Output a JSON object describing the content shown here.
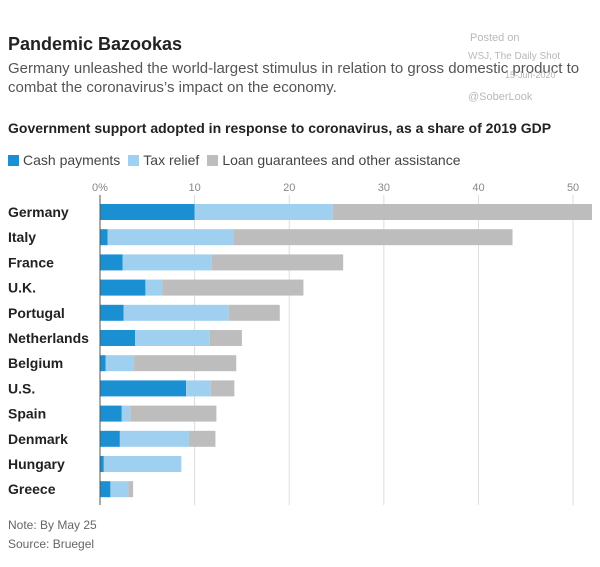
{
  "header": {
    "title": "Pandemic Bazookas",
    "subtitle": "Germany unleashed the world-largest stimulus in relation to gross domestic product to combat the coronavirus’s impact on the economy."
  },
  "watermark": {
    "posted": "Posted on",
    "source": "WSJ, The Daily Shot",
    "date": "15-Jun-2020",
    "handle": "@SoberLook"
  },
  "footer": {
    "note": "Note: By May 25",
    "source": "Source: Bruegel"
  },
  "colors": {
    "cash": "#1a8fd1",
    "tax": "#9fd0ef",
    "loan": "#bdbdbd"
  },
  "chart_data": {
    "type": "bar",
    "orientation": "horizontal",
    "stacked": true,
    "title": "Government support adopted in response to coronavirus, as a share of 2019 GDP",
    "xlim": [
      0,
      52
    ],
    "xticks": [
      0,
      10,
      20,
      30,
      40,
      50
    ],
    "xtick_labels": [
      "0%",
      "10",
      "20",
      "30",
      "40",
      "50"
    ],
    "categories": [
      "Germany",
      "Italy",
      "France",
      "U.K.",
      "Portugal",
      "Netherlands",
      "Belgium",
      "U.S.",
      "Spain",
      "Denmark",
      "Hungary",
      "Greece"
    ],
    "series": [
      {
        "name": "Cash payments",
        "key": "cash",
        "values": [
          10.0,
          0.8,
          2.4,
          4.8,
          2.5,
          3.7,
          0.6,
          9.1,
          2.3,
          2.1,
          0.4,
          1.1
        ]
      },
      {
        "name": "Tax relief",
        "key": "tax",
        "values": [
          14.6,
          13.3,
          9.4,
          1.8,
          11.1,
          7.9,
          3.0,
          2.6,
          0.9,
          7.3,
          8.2,
          1.9
        ]
      },
      {
        "name": "Loan guarantees and other assistance",
        "key": "loan",
        "values": [
          27.4,
          29.5,
          13.9,
          14.9,
          5.4,
          3.4,
          10.8,
          2.5,
          9.1,
          2.8,
          0.0,
          0.5
        ]
      }
    ],
    "grid": true
  }
}
